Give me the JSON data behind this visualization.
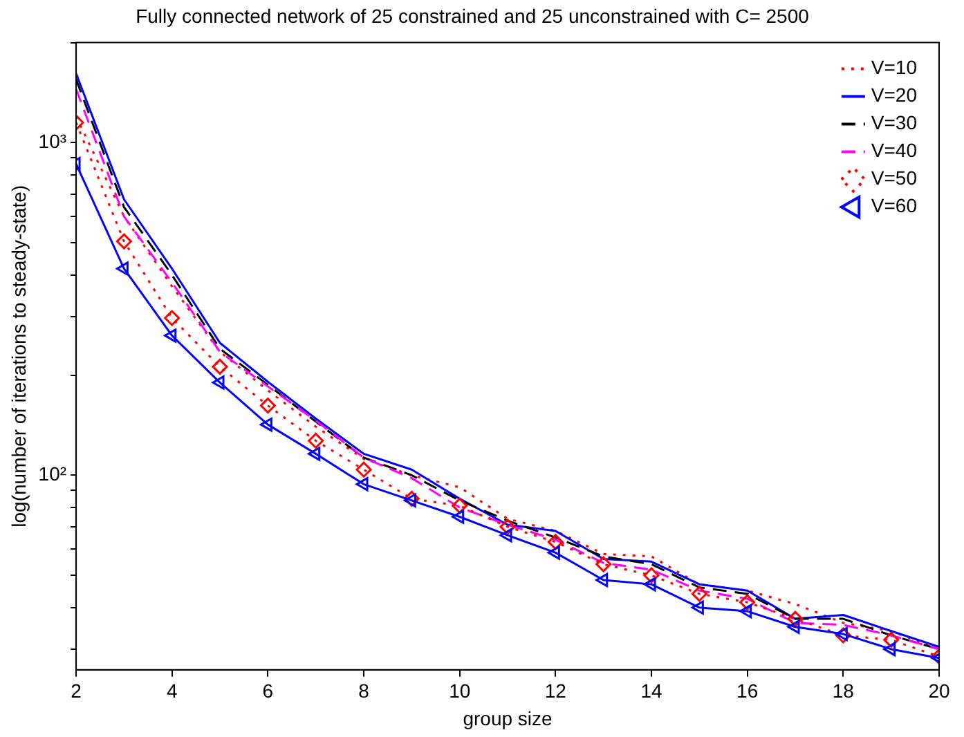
{
  "chart_data": {
    "type": "line",
    "title": "Fully connected network of 25 constrained and 25 unconstrained with C= 2500",
    "xlabel": "group size",
    "ylabel": "log(number of iterations to steady-state)",
    "x": [
      2,
      3,
      4,
      5,
      6,
      7,
      8,
      9,
      10,
      11,
      12,
      13,
      14,
      15,
      16,
      17,
      18,
      19,
      20
    ],
    "xlim": [
      2,
      20
    ],
    "xticks": [
      2,
      4,
      6,
      8,
      10,
      12,
      14,
      16,
      18,
      20
    ],
    "log": "y",
    "ylim": [
      26,
      2000
    ],
    "yticks": [
      {
        "value": 30,
        "label": null
      },
      {
        "value": 40,
        "label": null
      },
      {
        "value": 50,
        "label": null
      },
      {
        "value": 60,
        "label": null
      },
      {
        "value": 70,
        "label": null
      },
      {
        "value": 80,
        "label": null
      },
      {
        "value": 90,
        "label": null
      },
      {
        "value": 100,
        "label": "10²"
      },
      {
        "value": 200,
        "label": null
      },
      {
        "value": 300,
        "label": null
      },
      {
        "value": 400,
        "label": null
      },
      {
        "value": 500,
        "label": null
      },
      {
        "value": 600,
        "label": null
      },
      {
        "value": 700,
        "label": null
      },
      {
        "value": 800,
        "label": null
      },
      {
        "value": 900,
        "label": null
      },
      {
        "value": 1000,
        "label": "10³"
      },
      {
        "value": 2000,
        "label": null
      }
    ],
    "grid": false,
    "legend": "top right",
    "series": [
      {
        "name": "V=10",
        "color": "#ff0000",
        "line_style": "dotted",
        "marker": "none",
        "values": [
          1200,
          600,
          370,
          235,
          180,
          140,
          112,
          100,
          92,
          74,
          68,
          58,
          57,
          47,
          45,
          41,
          36,
          34,
          30
        ]
      },
      {
        "name": "V=20",
        "color": "#0000ff",
        "line_style": "solid",
        "marker": "none",
        "values": [
          1615,
          675,
          418,
          250,
          191,
          148,
          116,
          104,
          85,
          71,
          68,
          56,
          55,
          47,
          45,
          37,
          38,
          34,
          30.5
        ]
      },
      {
        "name": "V=30",
        "color": "#000000",
        "line_style": "dashed",
        "marker": "none",
        "values": [
          1550,
          640,
          400,
          240,
          187,
          145,
          113,
          100,
          84,
          73,
          65,
          57,
          54,
          46,
          44,
          37,
          37,
          33,
          30
        ]
      },
      {
        "name": "V=40",
        "color": "#ff00ff",
        "line_style": "dashed",
        "marker": "none",
        "values": [
          1450,
          600,
          380,
          235,
          185,
          146,
          113,
          98,
          80,
          71,
          64,
          54.5,
          52,
          45,
          42.5,
          36,
          35.5,
          33,
          30
        ]
      },
      {
        "name": "V=50",
        "color": "#ff0000",
        "line_style": "dotted",
        "marker": "diamond",
        "values": [
          1150,
          505,
          297,
          212,
          162,
          127,
          104,
          85,
          81,
          70,
          63,
          54,
          50,
          44,
          41.5,
          37,
          33,
          32,
          28.5
        ]
      },
      {
        "name": "V=60",
        "color": "#0000ff",
        "line_style": "solid",
        "marker": "triangle",
        "values": [
          863,
          418,
          263,
          190,
          142,
          116,
          94,
          84,
          75,
          66,
          58.5,
          48.4,
          47,
          40,
          39,
          35,
          33.3,
          30,
          28.2
        ]
      }
    ]
  }
}
